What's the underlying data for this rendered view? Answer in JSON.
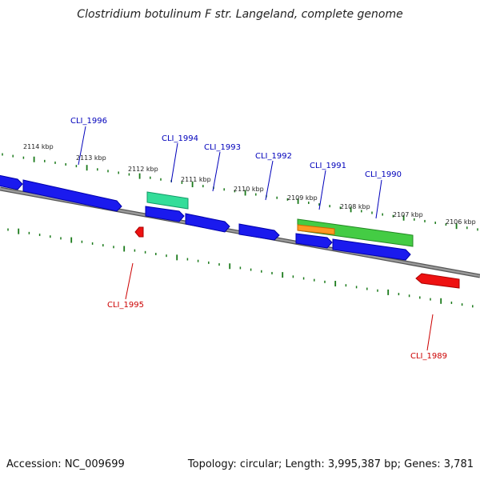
{
  "title": "Clostridium botulinum F str. Langeland, complete genome",
  "footer": {
    "accession": "Accession: NC_009699",
    "topology": "Topology: circular; Length: 3,995,387 bp; Genes: 3,781"
  },
  "colors": {
    "backbone": "#808080",
    "tick": "#1a7a1a",
    "forward_gene": "#1a1aee",
    "reverse_gene": "#ee1111",
    "teal_feature": "#33dd99",
    "green_feature": "#44cc44",
    "orange_feature": "#ff9922",
    "forward_label": "#0000bb",
    "reverse_label": "#cc0000"
  },
  "scale_labels": [
    "2114 kbp",
    "2113 kbp",
    "2112 kbp",
    "2111 kbp",
    "2110 kbp",
    "2109 kbp",
    "2108 kbp",
    "2107 kbp",
    "2106 kbp"
  ],
  "gene_labels": [
    {
      "text": "CLI_1996",
      "strand": "forward"
    },
    {
      "text": "CLI_1994",
      "strand": "forward"
    },
    {
      "text": "CLI_1993",
      "strand": "forward"
    },
    {
      "text": "CLI_1992",
      "strand": "forward"
    },
    {
      "text": "CLI_1991",
      "strand": "forward"
    },
    {
      "text": "CLI_1990",
      "strand": "forward"
    },
    {
      "text": "CLI_1995",
      "strand": "reverse"
    },
    {
      "text": "CLI_1989",
      "strand": "reverse"
    }
  ]
}
